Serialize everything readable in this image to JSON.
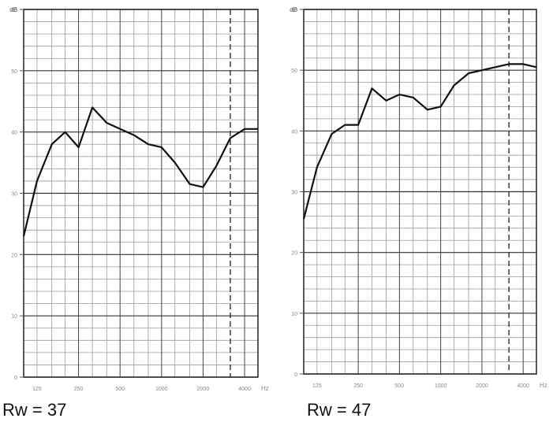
{
  "chart_data": [
    {
      "type": "line",
      "title": "",
      "xlabel": "",
      "ylabel": "",
      "y_unit": "dB",
      "x_unit": "Hz",
      "x_scale": "log",
      "xlim": [
        100,
        5000
      ],
      "ylim": [
        0,
        60
      ],
      "y_ticks": [
        0,
        10,
        20,
        30,
        40,
        50,
        60
      ],
      "x_tick_labels": [
        {
          "freq": 125,
          "label": "125"
        },
        {
          "freq": 250,
          "label": "250"
        },
        {
          "freq": 500,
          "label": "500"
        },
        {
          "freq": 1000,
          "label": "1000"
        },
        {
          "freq": 2000,
          "label": "2000"
        },
        {
          "freq": 4000,
          "label": "4000"
        }
      ],
      "reference_line_freq": 3150,
      "grid": true,
      "series": [
        {
          "x": [
            100,
            125,
            160,
            200,
            250,
            315,
            400,
            500,
            630,
            800,
            1000,
            1250,
            1600,
            2000,
            2500,
            3150,
            4000,
            5000
          ],
          "y": [
            23,
            32,
            38,
            40,
            37.5,
            44,
            41.5,
            40.5,
            39.5,
            38,
            37.5,
            35,
            31.5,
            31,
            34.5,
            39,
            40.5,
            40.5
          ]
        }
      ],
      "caption": "Rw = 37"
    },
    {
      "type": "line",
      "title": "",
      "xlabel": "",
      "ylabel": "",
      "y_unit": "dB",
      "x_unit": "Hz",
      "x_scale": "log",
      "xlim": [
        100,
        5000
      ],
      "ylim": [
        0,
        60
      ],
      "y_ticks": [
        0,
        10,
        20,
        30,
        40,
        50,
        60
      ],
      "x_tick_labels": [
        {
          "freq": 125,
          "label": "125"
        },
        {
          "freq": 250,
          "label": "250"
        },
        {
          "freq": 500,
          "label": "500"
        },
        {
          "freq": 1000,
          "label": "1000"
        },
        {
          "freq": 2000,
          "label": "2000"
        },
        {
          "freq": 4000,
          "label": "4000"
        }
      ],
      "reference_line_freq": 3150,
      "grid": true,
      "series": [
        {
          "x": [
            100,
            125,
            160,
            200,
            250,
            315,
            400,
            500,
            630,
            800,
            1000,
            1250,
            1600,
            2000,
            2500,
            3150,
            4000,
            5000
          ],
          "y": [
            25.5,
            34,
            39.5,
            41,
            41,
            47,
            45,
            46,
            45.5,
            43.5,
            44,
            47.5,
            49.5,
            50,
            50.5,
            51,
            51,
            50.5
          ]
        }
      ],
      "caption": "Rw = 47"
    }
  ]
}
